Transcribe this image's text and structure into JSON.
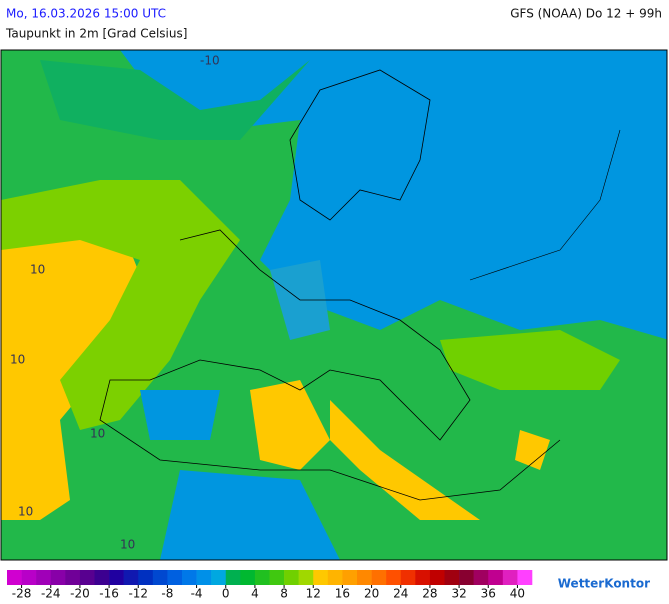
{
  "header": {
    "date": "Mo, 16.03.2026 15:00 UTC",
    "model": "GFS (NOAA) Do 12 + 99h",
    "title": "Taupunkt in 2m [Grad Celsius]"
  },
  "map": {
    "contour_labels": [
      "-10",
      "10",
      "10",
      "10",
      "10",
      "10"
    ]
  },
  "legend": {
    "ticks": [
      -28,
      -24,
      -20,
      -16,
      -12,
      -8,
      -4,
      0,
      4,
      8,
      12,
      16,
      20,
      24,
      28,
      32,
      36,
      40
    ],
    "colors": [
      "#d000d0",
      "#b800c8",
      "#a000b8",
      "#8800a8",
      "#700098",
      "#580090",
      "#3c0090",
      "#2000a0",
      "#1018b0",
      "#0030c0",
      "#0048d0",
      "#0060e0",
      "#0078e8",
      "#0090e8",
      "#00a8e0",
      "#00b050",
      "#00b830",
      "#20c020",
      "#40c810",
      "#70d000",
      "#a0d800",
      "#ffc800",
      "#ffb400",
      "#ffa000",
      "#ff8800",
      "#ff7000",
      "#ff5000",
      "#f03000",
      "#d81000",
      "#c00000",
      "#a00010",
      "#880030",
      "#a00060",
      "#c00090",
      "#e020c0",
      "#ff40ff"
    ]
  },
  "brand": "WetterKontor"
}
